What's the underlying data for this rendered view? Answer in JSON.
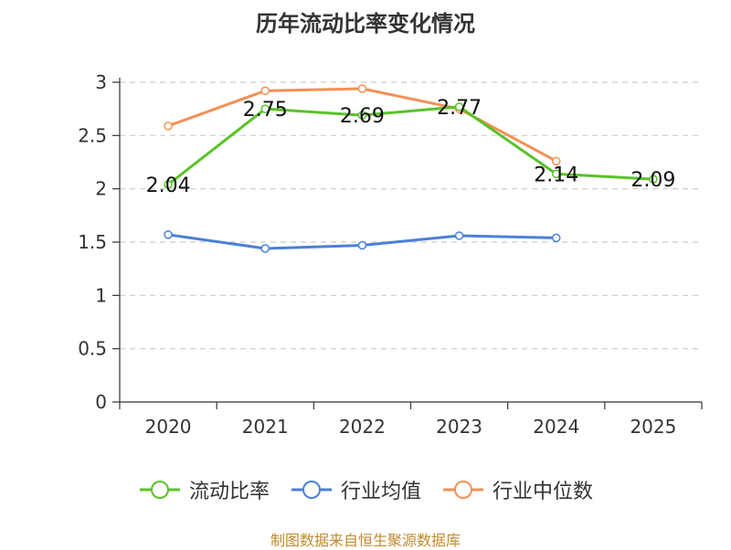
{
  "chart_data": {
    "type": "line",
    "title": "历年流动比率变化情况",
    "categories": [
      "2020",
      "2021",
      "2022",
      "2023",
      "2024",
      "2025"
    ],
    "y_ticks": [
      "0",
      "0.5",
      "1",
      "1.5",
      "2",
      "2.5",
      "3"
    ],
    "ylim": [
      0,
      3
    ],
    "grid": true,
    "legend_position": "bottom",
    "series": [
      {
        "name": "流动比率",
        "color": "#5ac229",
        "values": [
          2.04,
          2.75,
          2.69,
          2.77,
          2.14,
          2.09
        ],
        "labels": [
          "2.04",
          "2.75",
          "2.69",
          "2.77",
          "2.14",
          "2.09"
        ]
      },
      {
        "name": "行业均值",
        "color": "#4a80d9",
        "values": [
          1.57,
          1.44,
          1.47,
          1.56,
          1.54,
          null
        ]
      },
      {
        "name": "行业中位数",
        "color": "#f59055",
        "values": [
          2.59,
          2.92,
          2.94,
          2.75,
          2.26,
          null
        ]
      }
    ]
  },
  "source": "制图数据来自恒生聚源数据库"
}
